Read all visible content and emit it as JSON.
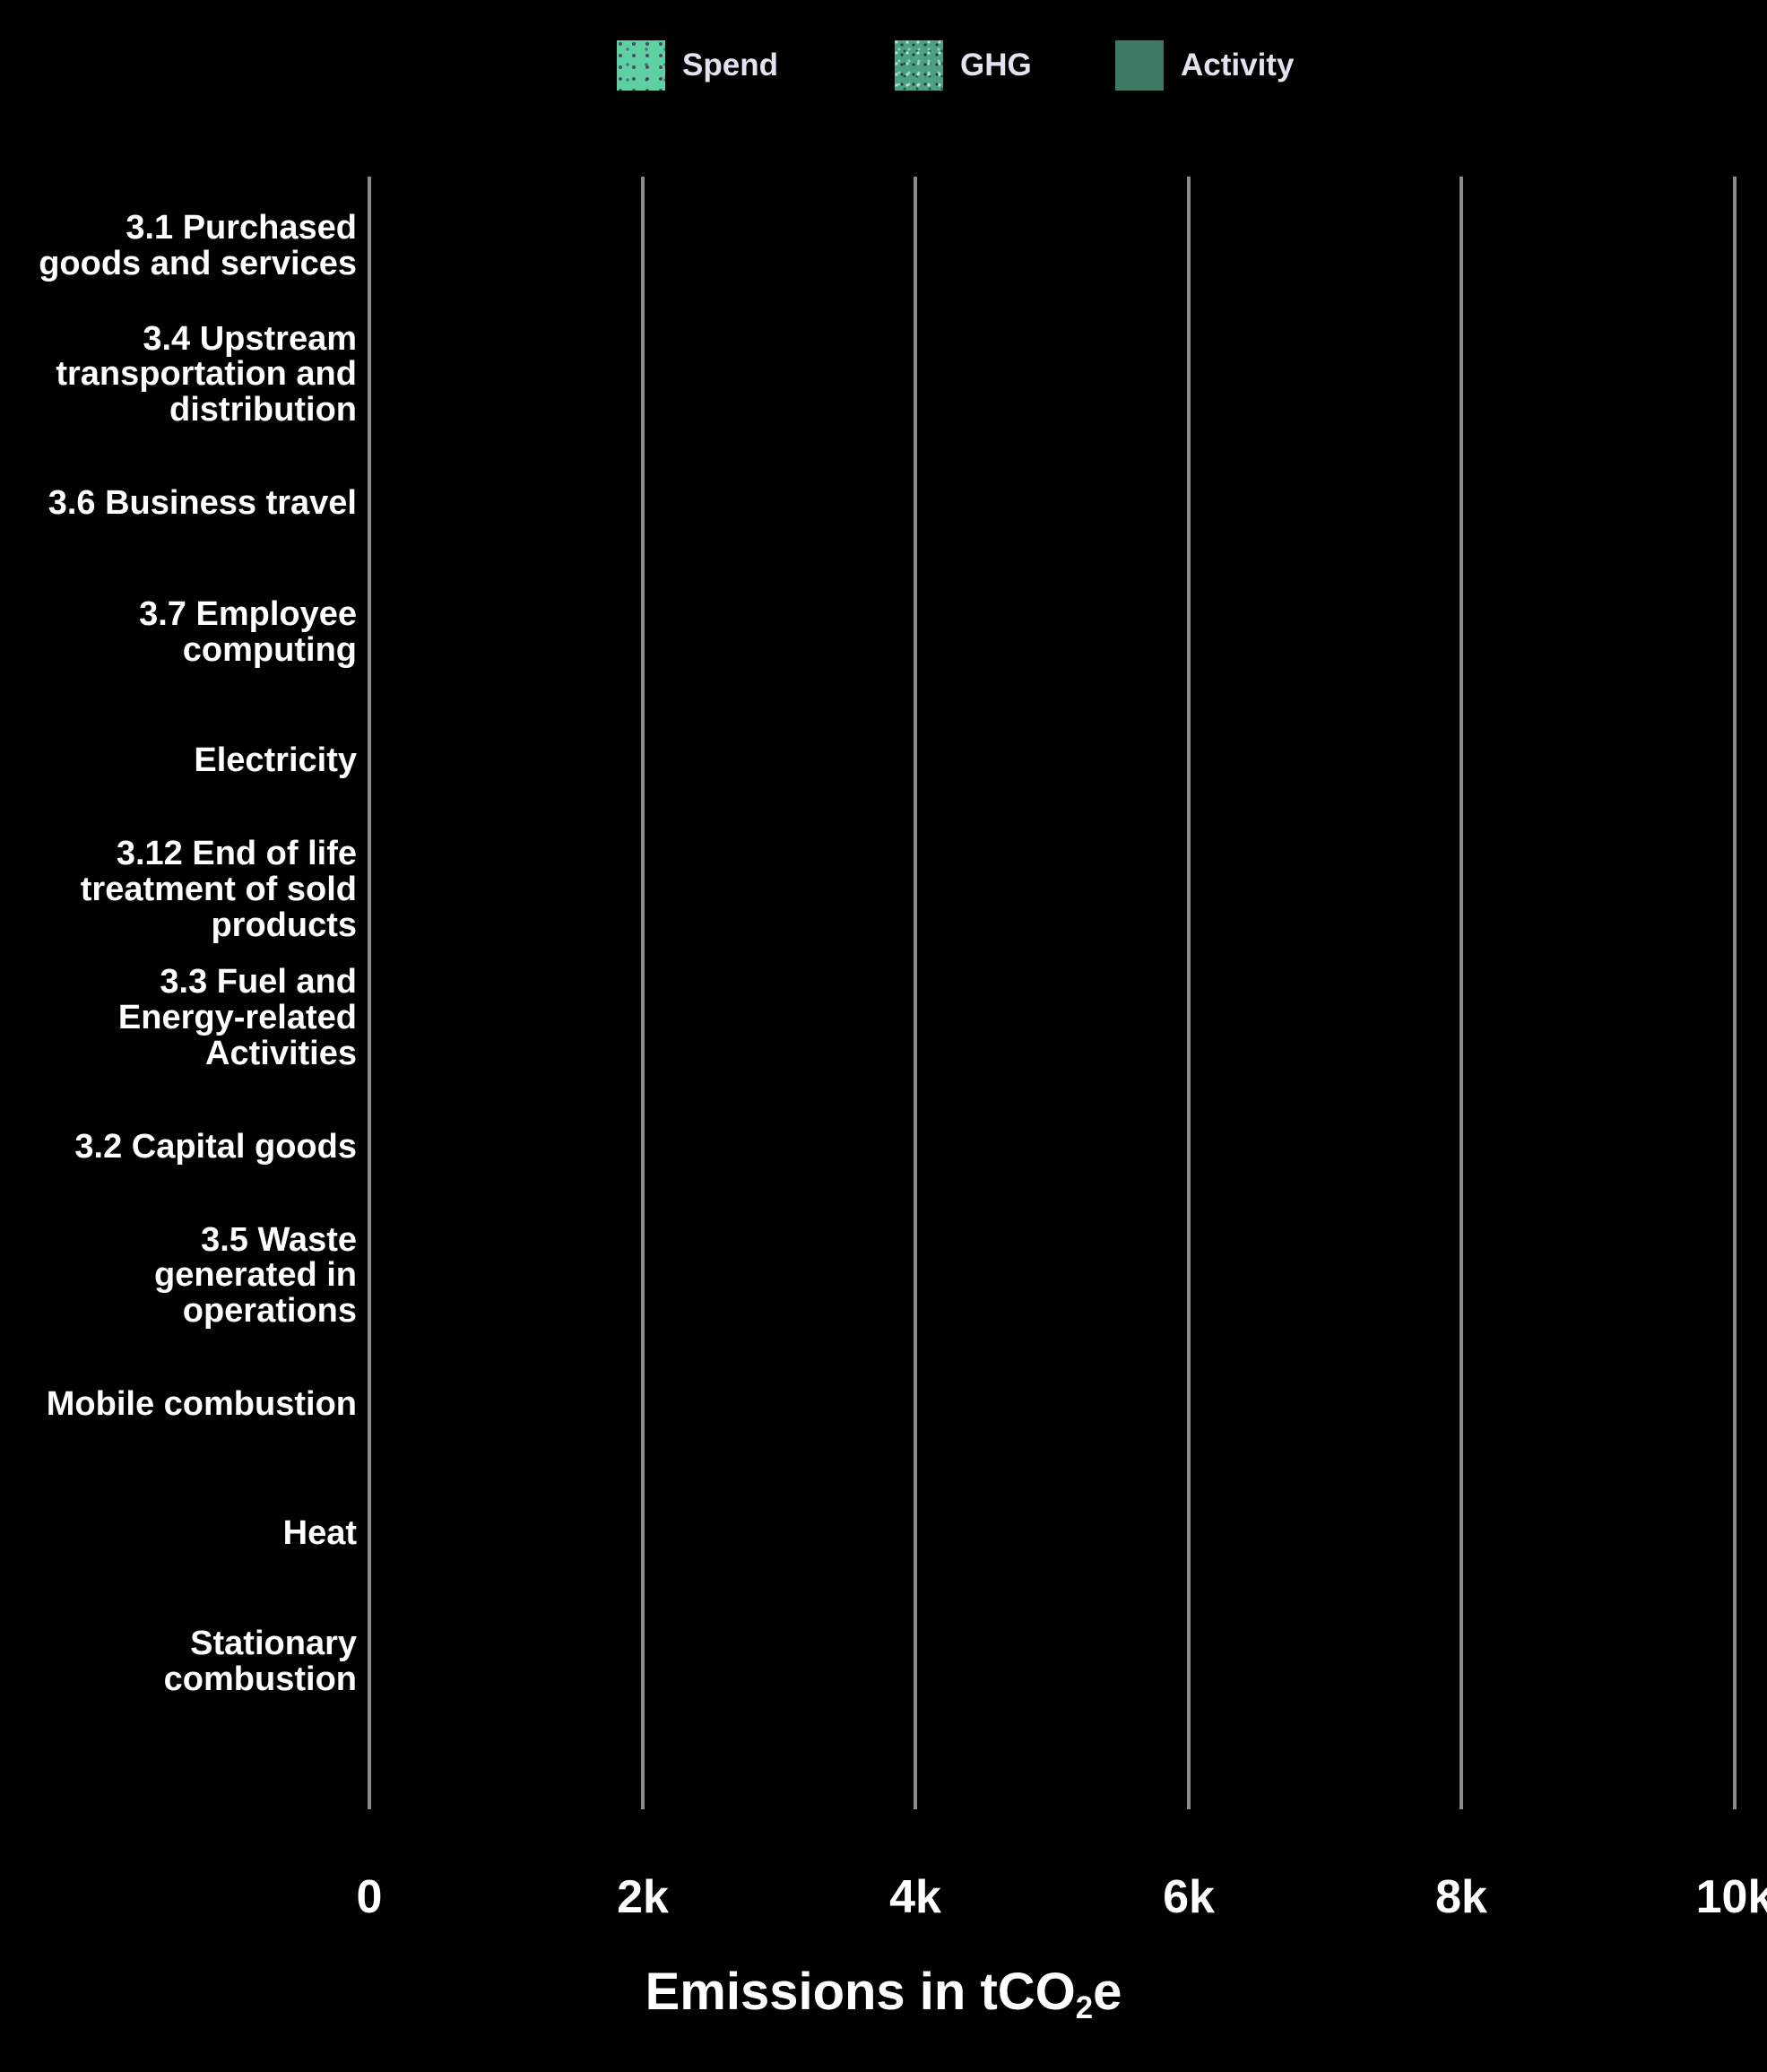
{
  "chart": {
    "background": "#000000",
    "gridline_color": "#8A8A8A",
    "text_color": "#FFFFFF",
    "legend_text_color": "#E1E3F0"
  },
  "legend": {
    "items": [
      {
        "label": "Spend",
        "color": "#5ED0A4",
        "texture": "dots"
      },
      {
        "label": "GHG",
        "color": "#4DA083",
        "texture": "noise"
      },
      {
        "label": "Activity",
        "color": "#3E7A62",
        "texture": "solid"
      }
    ]
  },
  "chart_data": {
    "type": "bar",
    "orientation": "horizontal",
    "categories": [
      "3.1 Purchased\ngoods and services",
      "3.4 Upstream\ntransportation and\ndistribution",
      "3.6 Business travel",
      "3.7 Employee\ncomputing",
      "Electricity",
      "3.12 End of life\ntreatment of sold\nproducts",
      "3.3 Fuel and\nEnergy-related\nActivities",
      "3.2 Capital goods",
      "3.5 Waste\ngenerated in\noperations",
      "Mobile combustion",
      "Heat",
      "Stationary\ncombustion"
    ],
    "series": [
      {
        "name": "Spend",
        "color": "#5ED0A4",
        "values": [
          0,
          0,
          0,
          0,
          0,
          0,
          0,
          0,
          0,
          0,
          0,
          0
        ]
      },
      {
        "name": "GHG",
        "color": "#4DA083",
        "values": [
          0,
          0,
          0,
          0,
          0,
          0,
          0,
          0,
          0,
          0,
          0,
          0
        ]
      },
      {
        "name": "Activity",
        "color": "#3E7A62",
        "values": [
          0,
          0,
          0,
          0,
          0,
          0,
          0,
          0,
          0,
          0,
          0,
          0
        ]
      }
    ],
    "x_ticks": [
      "0",
      "2k",
      "4k",
      "6k",
      "8k",
      "10k"
    ],
    "xlim": [
      0,
      10000
    ],
    "xlabel": "Emissions in tCO₂e",
    "xlabel_parts": {
      "prefix": "Emissions in tCO",
      "sub": "2",
      "suffix": "e"
    },
    "grid": "vertical-only",
    "legend_position": "top"
  }
}
